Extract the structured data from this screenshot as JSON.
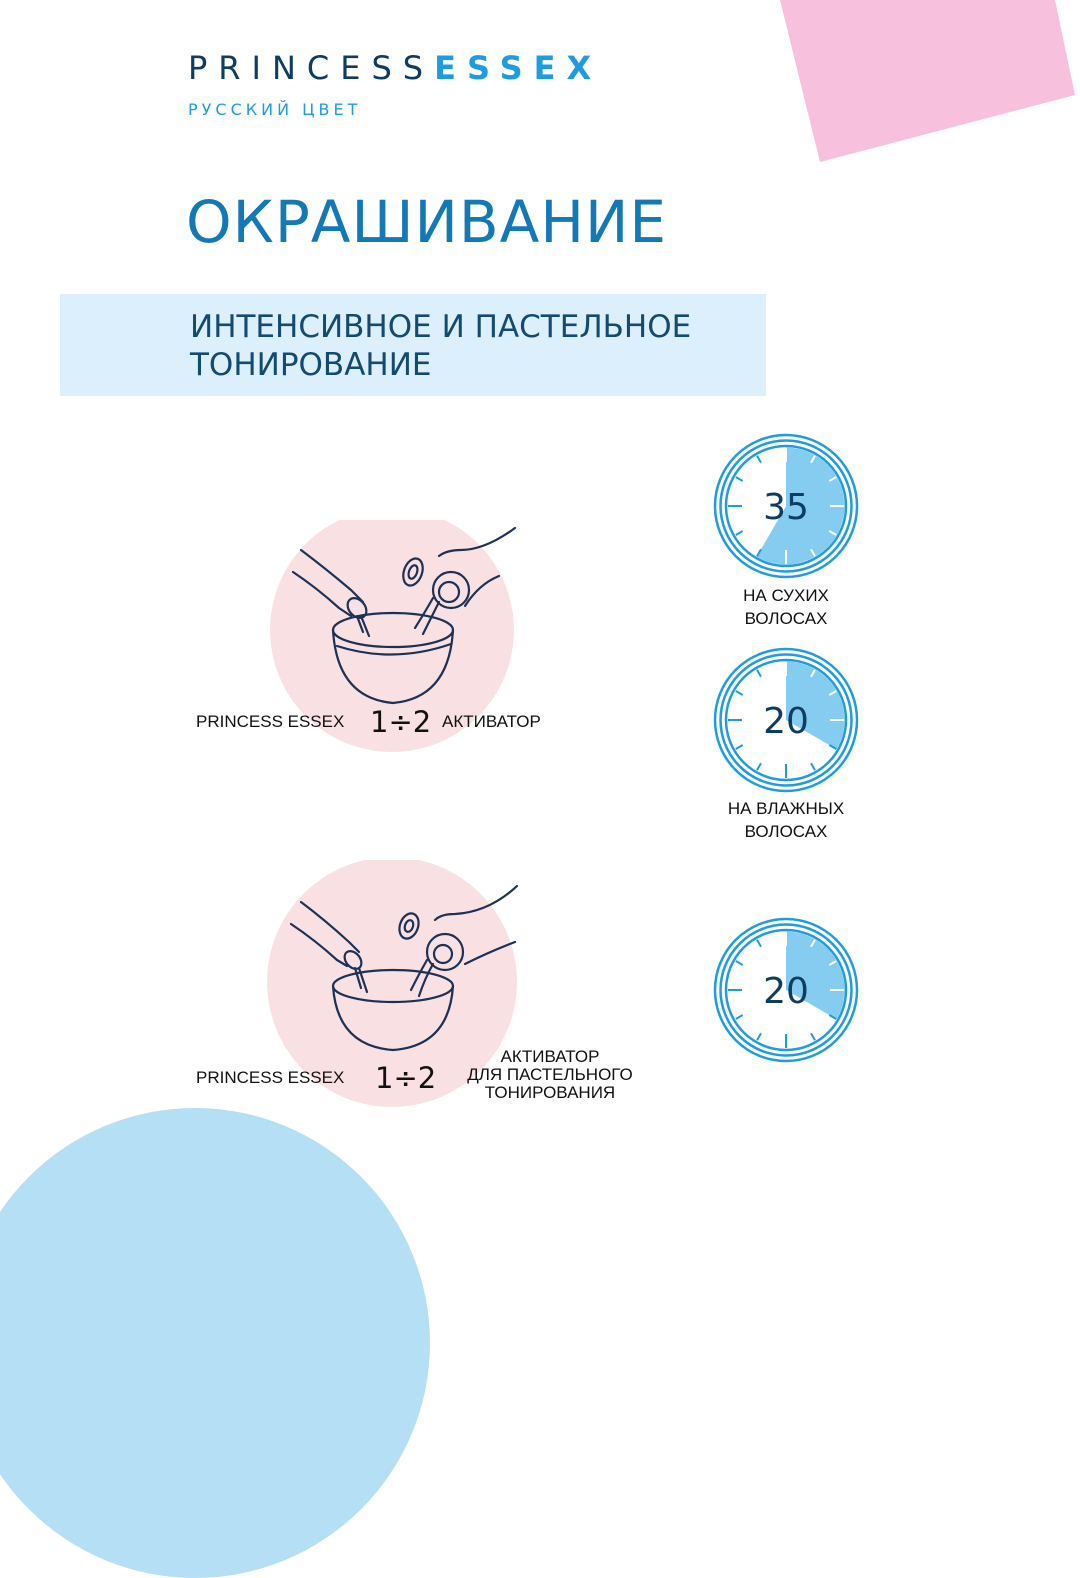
{
  "brand": {
    "name_part1": "PRINCESS",
    "name_part2": "ESSEX",
    "tagline": "РУССКИЙ ЦВЕТ"
  },
  "page_title": "ОКРАШИВАНИЕ",
  "section_title": "ИНТЕНСИВНОЕ И ПАСТЕЛЬНОЕ\nТОНИРОВАНИЕ",
  "colors": {
    "brand_dark": "#0e3d63",
    "brand_light": "#1f9ce0",
    "title_blue": "#1278b6",
    "banner_bg": "#dbeffc",
    "illustration_circle": "#f9e1e3",
    "timer_fill": "#85cdf0",
    "corner_pink": "#f7c1de",
    "corner_blue": "#b5dff5"
  },
  "mixes": [
    {
      "product": "PRINCESS ESSEX",
      "ratio": "1÷2",
      "activator": "АКТИВАТОР"
    },
    {
      "product": "PRINCESS ESSEX",
      "ratio": "1÷2",
      "activator": "АКТИВАТОР\nДЛЯ ПАСТЕЛЬНОГО\nТОНИРОВАНИЯ"
    }
  ],
  "timers": [
    {
      "minutes": "35",
      "fraction": 0.5833,
      "label": "НА СУХИХ\nВОЛОСАХ",
      "icon": "timer-icon"
    },
    {
      "minutes": "20",
      "fraction": 0.3333,
      "label": "НА ВЛАЖНЫХ\nВОЛОСАХ",
      "icon": "timer-icon"
    },
    {
      "minutes": "20",
      "fraction": 0.3333,
      "label": "",
      "icon": "timer-icon"
    }
  ]
}
